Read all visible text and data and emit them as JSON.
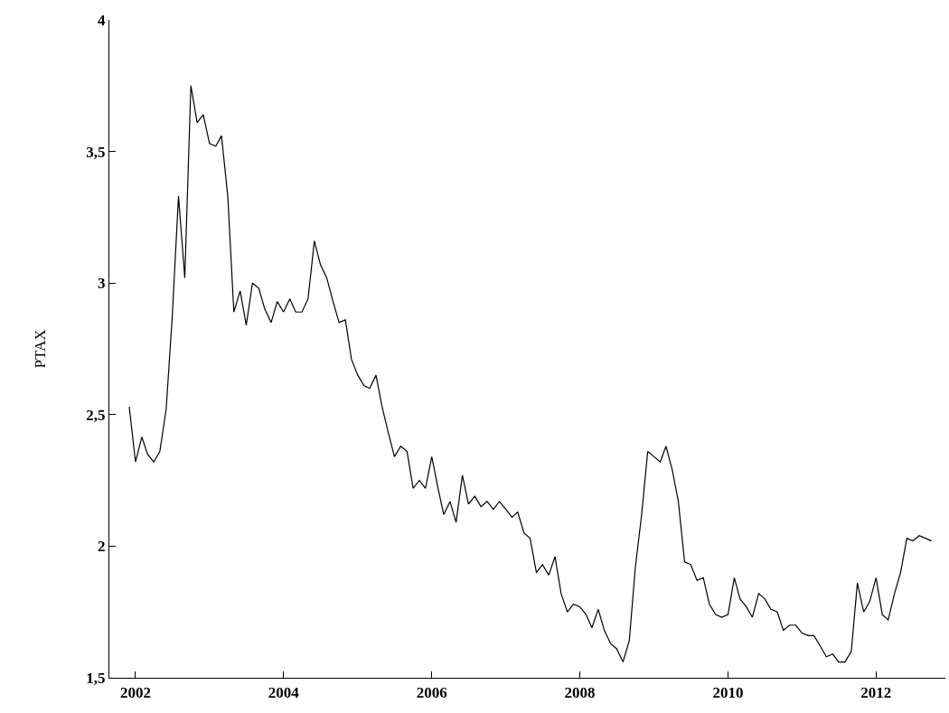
{
  "chart_data": {
    "type": "line",
    "ylabel": "PTAX",
    "x": [
      "2001-12",
      "2002-01",
      "2002-02",
      "2002-03",
      "2002-04",
      "2002-05",
      "2002-06",
      "2002-07",
      "2002-08",
      "2002-09",
      "2002-10",
      "2002-11",
      "2002-12",
      "2003-01",
      "2003-02",
      "2003-03",
      "2003-04",
      "2003-05",
      "2003-06",
      "2003-07",
      "2003-08",
      "2003-09",
      "2003-10",
      "2003-11",
      "2003-12",
      "2004-01",
      "2004-02",
      "2004-03",
      "2004-04",
      "2004-05",
      "2004-06",
      "2004-07",
      "2004-08",
      "2004-09",
      "2004-10",
      "2004-11",
      "2004-12",
      "2005-01",
      "2005-02",
      "2005-03",
      "2005-04",
      "2005-05",
      "2005-06",
      "2005-07",
      "2005-08",
      "2005-09",
      "2005-10",
      "2005-11",
      "2005-12",
      "2006-01",
      "2006-02",
      "2006-03",
      "2006-04",
      "2006-05",
      "2006-06",
      "2006-07",
      "2006-08",
      "2006-09",
      "2006-10",
      "2006-11",
      "2006-12",
      "2007-01",
      "2007-02",
      "2007-03",
      "2007-04",
      "2007-05",
      "2007-06",
      "2007-07",
      "2007-08",
      "2007-09",
      "2007-10",
      "2007-11",
      "2007-12",
      "2008-01",
      "2008-02",
      "2008-03",
      "2008-04",
      "2008-05",
      "2008-06",
      "2008-07",
      "2008-08",
      "2008-09",
      "2008-10",
      "2008-11",
      "2008-12",
      "2009-01",
      "2009-02",
      "2009-03",
      "2009-04",
      "2009-05",
      "2009-06",
      "2009-07",
      "2009-08",
      "2009-09",
      "2009-10",
      "2009-11",
      "2009-12",
      "2010-01",
      "2010-02",
      "2010-03",
      "2010-04",
      "2010-05",
      "2010-06",
      "2010-07",
      "2010-08",
      "2010-09",
      "2010-10",
      "2010-11",
      "2010-12",
      "2011-01",
      "2011-02",
      "2011-03",
      "2011-04",
      "2011-05",
      "2011-06",
      "2011-07",
      "2011-08",
      "2011-09",
      "2011-10",
      "2011-11",
      "2011-12",
      "2012-01",
      "2012-02",
      "2012-03",
      "2012-04",
      "2012-05",
      "2012-06",
      "2012-07",
      "2012-08",
      "2012-09",
      "2012-10"
    ],
    "series": [
      {
        "color": "#000000",
        "values": [
          2.53,
          2.32,
          2.415,
          2.35,
          2.32,
          2.36,
          2.52,
          2.87,
          3.33,
          3.02,
          3.75,
          3.61,
          3.64,
          3.53,
          3.52,
          3.56,
          3.33,
          2.89,
          2.97,
          2.84,
          3.0,
          2.98,
          2.9,
          2.85,
          2.93,
          2.89,
          2.94,
          2.89,
          2.89,
          2.94,
          3.16,
          3.07,
          3.02,
          2.93,
          2.85,
          2.86,
          2.71,
          2.65,
          2.61,
          2.6,
          2.65,
          2.53,
          2.43,
          2.34,
          2.38,
          2.36,
          2.22,
          2.25,
          2.22,
          2.34,
          2.22,
          2.12,
          2.17,
          2.09,
          2.27,
          2.16,
          2.19,
          2.15,
          2.17,
          2.14,
          2.17,
          2.14,
          2.11,
          2.13,
          2.05,
          2.03,
          1.9,
          1.93,
          1.89,
          1.96,
          1.82,
          1.75,
          1.78,
          1.77,
          1.74,
          1.69,
          1.76,
          1.68,
          1.63,
          1.61,
          1.56,
          1.64,
          1.92,
          2.12,
          2.36,
          2.34,
          2.32,
          2.38,
          2.29,
          2.17,
          1.94,
          1.93,
          1.87,
          1.88,
          1.78,
          1.74,
          1.73,
          1.74,
          1.88,
          1.8,
          1.77,
          1.73,
          1.82,
          1.8,
          1.76,
          1.75,
          1.68,
          1.7,
          1.7,
          1.67,
          1.66,
          1.66,
          1.62,
          1.58,
          1.59,
          1.56,
          1.56,
          1.6,
          1.86,
          1.75,
          1.79,
          1.88,
          1.74,
          1.72,
          1.82,
          1.9,
          2.03,
          2.02,
          2.04,
          2.03,
          2.02
        ]
      }
    ],
    "xlim": [
      "2001-08-25",
      "2012-12-08"
    ],
    "xticks": [
      {
        "value": "2002-01-01",
        "label": "2002"
      },
      {
        "value": "2004-01-01",
        "label": "2004"
      },
      {
        "value": "2006-01-01",
        "label": "2006"
      },
      {
        "value": "2008-01-01",
        "label": "2008"
      },
      {
        "value": "2010-01-01",
        "label": "2010"
      },
      {
        "value": "2012-01-01",
        "label": "2012"
      }
    ],
    "ylim": [
      1.5,
      4
    ],
    "yticks": [
      {
        "value": 1.5,
        "label": "1,5"
      },
      2,
      {
        "value": 2.5,
        "label": "2,5"
      },
      3,
      {
        "value": 3.5,
        "label": "3,5"
      },
      4
    ],
    "marker": "none",
    "line_style": "solid"
  }
}
